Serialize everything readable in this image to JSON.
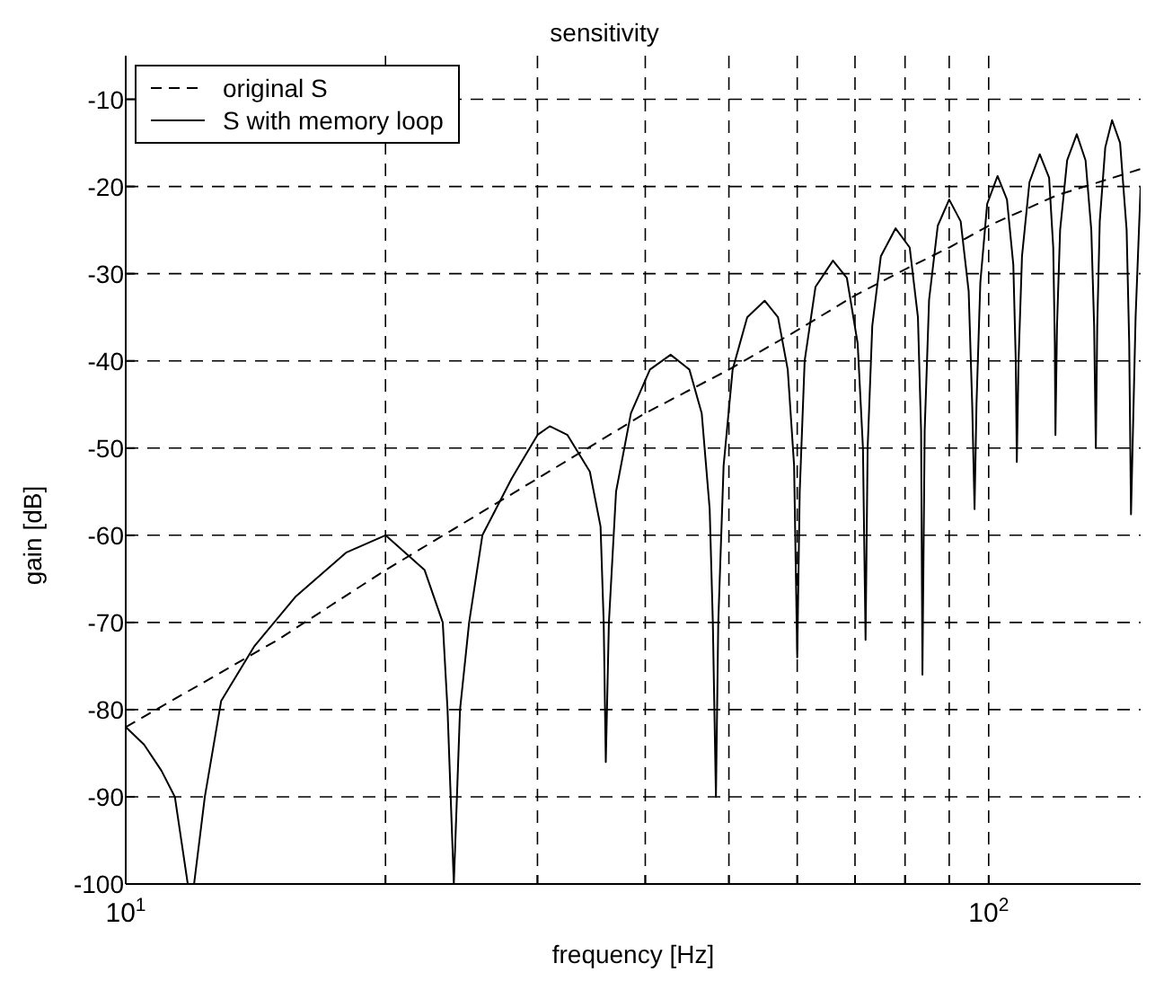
{
  "chart_data": {
    "type": "line",
    "title": "sensitivity",
    "xlabel": "frequency [Hz]",
    "ylabel": "gain [dB]",
    "log": "x",
    "grid": true,
    "legend": "top left",
    "xlim": [
      10,
      150
    ],
    "xticks": [
      {
        "value": 10,
        "label": "10$^{1}$"
      },
      {
        "value": 20,
        "label": null
      },
      {
        "value": 30,
        "label": null
      },
      {
        "value": 40,
        "label": null
      },
      {
        "value": 50,
        "label": null
      },
      {
        "value": 60,
        "label": null
      },
      {
        "value": 70,
        "label": null
      },
      {
        "value": 80,
        "label": null
      },
      {
        "value": 90,
        "label": null
      },
      {
        "value": 100,
        "label": "10$^{2}$"
      }
    ],
    "ylim": [
      -100,
      -5
    ],
    "yticks": [
      -100,
      -90,
      -80,
      -70,
      -60,
      -50,
      -40,
      -30,
      -20,
      -10
    ],
    "series": [
      {
        "name": "original S",
        "color": "#000000",
        "line_style": "dashed",
        "x": [
          10,
          15,
          20,
          30,
          40,
          50,
          60,
          70,
          80,
          90,
          100,
          120,
          150
        ],
        "values": [
          -82,
          -72,
          -64,
          -53.5,
          -46,
          -41,
          -36.5,
          -32.5,
          -29.5,
          -27,
          -24.5,
          -21,
          -18
        ]
      },
      {
        "name": "S with memory loop",
        "color": "#000000",
        "line_style": "solid",
        "x": [
          10,
          10.5,
          11,
          11.4,
          11.8,
          12,
          12.35,
          12.9,
          14.1,
          15.75,
          18,
          20,
          22.2,
          23.3,
          23.6,
          24,
          24.4,
          25,
          25.9,
          28,
          30,
          31,
          32.5,
          34.5,
          35.5,
          35.8,
          36,
          36.3,
          37,
          38.5,
          40.5,
          42.8,
          45,
          46.5,
          47.5,
          47.9,
          48.3,
          48.6,
          49.3,
          50.5,
          52.5,
          55,
          57,
          58.5,
          59.5,
          60,
          60.4,
          61.2,
          63,
          66,
          68.5,
          70.5,
          71.5,
          72,
          72.4,
          73.3,
          75,
          78,
          81,
          82.8,
          83.5,
          83.8,
          84.3,
          85.3,
          87.3,
          90,
          92.8,
          94.8,
          95.7,
          96.3,
          96.8,
          97.8,
          99.6,
          102.4,
          105,
          106.8,
          107.5,
          107.8,
          108.3,
          109.3,
          111.5,
          114.6,
          117.5,
          118.8,
          119.3,
          119.5,
          120,
          121,
          123.3,
          126.5,
          129.5,
          131.5,
          132.5,
          133.1,
          133.6,
          134.5,
          136.5,
          139,
          142,
          144.5,
          145.5,
          146.2,
          148,
          150
        ],
        "values": [
          -82,
          -84,
          -87,
          -90,
          -100,
          -100,
          -90,
          -79,
          -72.7,
          -67,
          -62,
          -60,
          -64,
          -70,
          -80,
          -100,
          -80,
          -70,
          -60,
          -53.5,
          -48.5,
          -47.5,
          -48.5,
          -52.7,
          -59,
          -70,
          -86,
          -70,
          -55,
          -46,
          -41,
          -39.3,
          -41,
          -46,
          -57,
          -70,
          -90,
          -70,
          -52,
          -41,
          -35,
          -33.1,
          -35,
          -41,
          -52,
          -74,
          -55,
          -40,
          -31.5,
          -28.5,
          -30.5,
          -38,
          -50,
          -72,
          -50,
          -36,
          -28,
          -24.8,
          -27,
          -35,
          -48,
          -76,
          -48,
          -33,
          -24.5,
          -21.5,
          -24,
          -32,
          -45,
          -57,
          -45,
          -31,
          -22,
          -18.8,
          -21.5,
          -29,
          -40,
          -51.6,
          -40,
          -28,
          -19.5,
          -16.3,
          -19,
          -27,
          -38,
          -48.5,
          -36,
          -25,
          -17,
          -14,
          -17,
          -25,
          -36,
          -50,
          -36,
          -24,
          -15.5,
          -12.4,
          -15,
          -25,
          -38,
          -57.6,
          -35,
          -20
        ]
      }
    ]
  }
}
